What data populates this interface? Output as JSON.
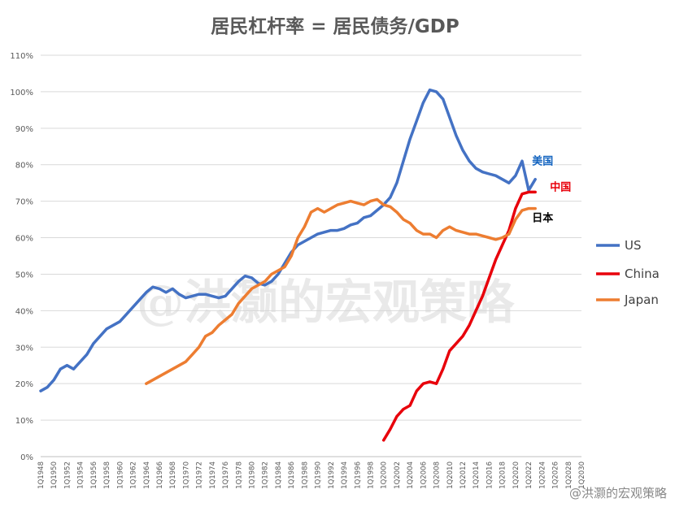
{
  "chart_data": {
    "type": "line",
    "title": "居民杠杆率 = 居民债务/GDP",
    "xlabel": "",
    "ylabel": "",
    "ylim": [
      0,
      110
    ],
    "yticks": [
      "0%",
      "10%",
      "20%",
      "30%",
      "40%",
      "50%",
      "60%",
      "70%",
      "80%",
      "90%",
      "100%",
      "110%"
    ],
    "xticks": [
      "1Q1948",
      "1Q1950",
      "1Q1952",
      "1Q1954",
      "1Q1956",
      "1Q1958",
      "1Q1960",
      "1Q1962",
      "1Q1964",
      "1Q1966",
      "1Q1968",
      "1Q1970",
      "1Q1972",
      "1Q1974",
      "1Q1976",
      "1Q1978",
      "1Q1980",
      "1Q1982",
      "1Q1984",
      "1Q1986",
      "1Q1988",
      "1Q1990",
      "1Q1992",
      "1Q1994",
      "1Q1996",
      "1Q1998",
      "1Q2000",
      "1Q2002",
      "1Q2004",
      "1Q2006",
      "1Q2008",
      "1Q2010",
      "1Q2012",
      "1Q2014",
      "1Q2016",
      "1Q2018",
      "1Q2020",
      "1Q2022",
      "1Q2024",
      "1Q2026",
      "1Q2028",
      "1Q2030"
    ],
    "grid": true,
    "legend_position": "right",
    "series": [
      {
        "name": "US",
        "color": "#4472C4",
        "points": [
          [
            1948,
            18
          ],
          [
            1949,
            19
          ],
          [
            1950,
            21
          ],
          [
            1951,
            24
          ],
          [
            1952,
            25
          ],
          [
            1953,
            24
          ],
          [
            1954,
            26
          ],
          [
            1955,
            28
          ],
          [
            1956,
            31
          ],
          [
            1957,
            33
          ],
          [
            1958,
            35
          ],
          [
            1959,
            36
          ],
          [
            1960,
            37
          ],
          [
            1961,
            39
          ],
          [
            1962,
            41
          ],
          [
            1963,
            43
          ],
          [
            1964,
            45
          ],
          [
            1965,
            46.5
          ],
          [
            1966,
            46
          ],
          [
            1967,
            45
          ],
          [
            1968,
            46
          ],
          [
            1969,
            44.5
          ],
          [
            1970,
            43.5
          ],
          [
            1971,
            44
          ],
          [
            1972,
            44.5
          ],
          [
            1973,
            44.5
          ],
          [
            1974,
            44
          ],
          [
            1975,
            43.5
          ],
          [
            1976,
            44
          ],
          [
            1977,
            46
          ],
          [
            1978,
            48
          ],
          [
            1979,
            49.5
          ],
          [
            1980,
            49
          ],
          [
            1981,
            47.5
          ],
          [
            1982,
            47
          ],
          [
            1983,
            48
          ],
          [
            1984,
            50
          ],
          [
            1985,
            53
          ],
          [
            1986,
            56
          ],
          [
            1987,
            58
          ],
          [
            1988,
            59
          ],
          [
            1989,
            60
          ],
          [
            1990,
            61
          ],
          [
            1991,
            61.5
          ],
          [
            1992,
            62
          ],
          [
            1993,
            62
          ],
          [
            1994,
            62.5
          ],
          [
            1995,
            63.5
          ],
          [
            1996,
            64
          ],
          [
            1997,
            65.5
          ],
          [
            1998,
            66
          ],
          [
            1999,
            67.5
          ],
          [
            2000,
            69
          ],
          [
            2001,
            71
          ],
          [
            2002,
            75
          ],
          [
            2003,
            81
          ],
          [
            2004,
            87
          ],
          [
            2005,
            92
          ],
          [
            2006,
            97
          ],
          [
            2007,
            100.5
          ],
          [
            2008,
            100
          ],
          [
            2009,
            98
          ],
          [
            2010,
            93
          ],
          [
            2011,
            88
          ],
          [
            2012,
            84
          ],
          [
            2013,
            81
          ],
          [
            2014,
            79
          ],
          [
            2015,
            78
          ],
          [
            2016,
            77.5
          ],
          [
            2017,
            77
          ],
          [
            2018,
            76
          ],
          [
            2019,
            75
          ],
          [
            2020,
            77
          ],
          [
            2021,
            81
          ],
          [
            2022,
            73
          ],
          [
            2023,
            76
          ]
        ]
      },
      {
        "name": "China",
        "color": "#E8000B",
        "points": [
          [
            2000,
            4.5
          ],
          [
            2001,
            7.5
          ],
          [
            2002,
            11
          ],
          [
            2003,
            13
          ],
          [
            2004,
            14
          ],
          [
            2005,
            18
          ],
          [
            2006,
            20
          ],
          [
            2007,
            20.5
          ],
          [
            2008,
            20
          ],
          [
            2009,
            24
          ],
          [
            2010,
            29
          ],
          [
            2011,
            31
          ],
          [
            2012,
            33
          ],
          [
            2013,
            36
          ],
          [
            2014,
            40
          ],
          [
            2015,
            44
          ],
          [
            2016,
            49
          ],
          [
            2017,
            54
          ],
          [
            2018,
            58
          ],
          [
            2019,
            62
          ],
          [
            2020,
            68
          ],
          [
            2021,
            72
          ],
          [
            2022,
            72.5
          ],
          [
            2023,
            72.5
          ]
        ]
      },
      {
        "name": "Japan",
        "color": "#ED7D31",
        "points": [
          [
            1964,
            20
          ],
          [
            1965,
            21
          ],
          [
            1966,
            22
          ],
          [
            1967,
            23
          ],
          [
            1968,
            24
          ],
          [
            1969,
            25
          ],
          [
            1970,
            26
          ],
          [
            1971,
            28
          ],
          [
            1972,
            30
          ],
          [
            1973,
            33
          ],
          [
            1974,
            34
          ],
          [
            1975,
            36
          ],
          [
            1976,
            37.5
          ],
          [
            1977,
            39
          ],
          [
            1978,
            42
          ],
          [
            1979,
            44
          ],
          [
            1980,
            46
          ],
          [
            1981,
            47
          ],
          [
            1982,
            48
          ],
          [
            1983,
            50
          ],
          [
            1984,
            51
          ],
          [
            1985,
            52
          ],
          [
            1986,
            55
          ],
          [
            1987,
            60
          ],
          [
            1988,
            63
          ],
          [
            1989,
            67
          ],
          [
            1990,
            68
          ],
          [
            1991,
            67
          ],
          [
            1992,
            68
          ],
          [
            1993,
            69
          ],
          [
            1994,
            69.5
          ],
          [
            1995,
            70
          ],
          [
            1996,
            69.5
          ],
          [
            1997,
            69
          ],
          [
            1998,
            70
          ],
          [
            1999,
            70.5
          ],
          [
            2000,
            69
          ],
          [
            2001,
            68.5
          ],
          [
            2002,
            67
          ],
          [
            2003,
            65
          ],
          [
            2004,
            64
          ],
          [
            2005,
            62
          ],
          [
            2006,
            61
          ],
          [
            2007,
            61
          ],
          [
            2008,
            60
          ],
          [
            2009,
            62
          ],
          [
            2010,
            63
          ],
          [
            2011,
            62
          ],
          [
            2012,
            61.5
          ],
          [
            2013,
            61
          ],
          [
            2014,
            61
          ],
          [
            2015,
            60.5
          ],
          [
            2016,
            60
          ],
          [
            2017,
            59.5
          ],
          [
            2018,
            60
          ],
          [
            2019,
            61
          ],
          [
            2020,
            65
          ],
          [
            2021,
            67.5
          ],
          [
            2022,
            68
          ],
          [
            2023,
            68
          ]
        ]
      }
    ],
    "annotations": [
      {
        "text": "美国",
        "series": "US",
        "color": "#1565C0"
      },
      {
        "text": "中国",
        "series": "China",
        "color": "#E8000B"
      },
      {
        "text": "日本",
        "series": "Japan",
        "color": "#000000"
      }
    ]
  },
  "watermark": "@洪灏的宏观策略",
  "credit": "@洪灏的宏观策略"
}
